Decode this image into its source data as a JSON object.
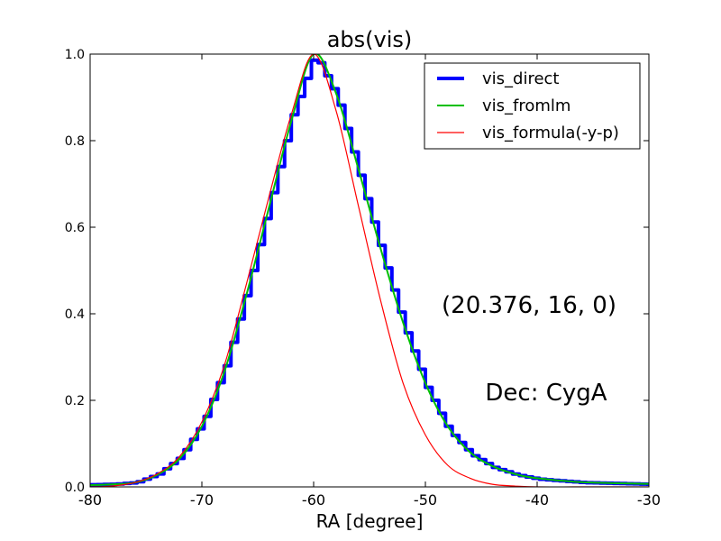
{
  "chart_data": {
    "type": "line",
    "title": "abs(vis)",
    "xlabel": "RA [degree]",
    "ylabel": "",
    "xlim": [
      -80,
      -30
    ],
    "ylim": [
      0,
      1.0
    ],
    "x_ticks": [
      -80,
      -70,
      -60,
      -50,
      -40,
      -30
    ],
    "x_tick_labels": [
      "-80",
      "-70",
      "-60",
      "-50",
      "-40",
      "-30"
    ],
    "y_ticks": [
      0.0,
      0.2,
      0.4,
      0.6,
      0.8,
      1.0
    ],
    "y_tick_labels": [
      "0.0",
      "0.2",
      "0.4",
      "0.6",
      "0.8",
      "1.0"
    ],
    "grid": false,
    "legend_position": "top-right",
    "annotations": [
      "(20.376, 16, 0)",
      "Dec: CygA"
    ],
    "series": [
      {
        "name": "vis_direct",
        "color": "#0000ff",
        "style": "step",
        "x": [
          -80,
          -78,
          -76,
          -74,
          -72,
          -70,
          -68,
          -66,
          -64,
          -62,
          -60,
          -58,
          -56,
          -54,
          -52,
          -50,
          -48,
          -46,
          -44,
          -42,
          -40,
          -36,
          -30
        ],
        "y": [
          0.005,
          0.006,
          0.01,
          0.03,
          0.07,
          0.15,
          0.28,
          0.46,
          0.66,
          0.86,
          1.0,
          0.9,
          0.72,
          0.54,
          0.37,
          0.23,
          0.13,
          0.075,
          0.045,
          0.028,
          0.018,
          0.01,
          0.006
        ]
      },
      {
        "name": "vis_fromlm",
        "color": "#00bf00",
        "style": "line",
        "x": [
          -80,
          -78,
          -76,
          -74,
          -72,
          -70,
          -68,
          -66,
          -64,
          -62,
          -60,
          -58,
          -56,
          -54,
          -52,
          -50,
          -48,
          -46,
          -44,
          -42,
          -40,
          -36,
          -30
        ],
        "y": [
          0.004,
          0.006,
          0.01,
          0.028,
          0.065,
          0.14,
          0.265,
          0.445,
          0.645,
          0.845,
          1.0,
          0.91,
          0.735,
          0.55,
          0.38,
          0.24,
          0.14,
          0.08,
          0.048,
          0.03,
          0.02,
          0.011,
          0.007
        ]
      },
      {
        "name": "vis_formula(-y-p)",
        "color": "#ff0000",
        "style": "line",
        "x": [
          -80,
          -78,
          -76,
          -74,
          -72,
          -70,
          -68,
          -66,
          -64,
          -62,
          -60,
          -58,
          -56,
          -54,
          -52,
          -50,
          -48,
          -46,
          -44,
          -42,
          -40,
          -36,
          -30
        ],
        "y": [
          0.0,
          0.002,
          0.01,
          0.03,
          0.07,
          0.15,
          0.28,
          0.47,
          0.67,
          0.86,
          1.0,
          0.87,
          0.65,
          0.43,
          0.24,
          0.12,
          0.05,
          0.02,
          0.006,
          0.002,
          0.0,
          0.0,
          0.0
        ]
      }
    ]
  }
}
